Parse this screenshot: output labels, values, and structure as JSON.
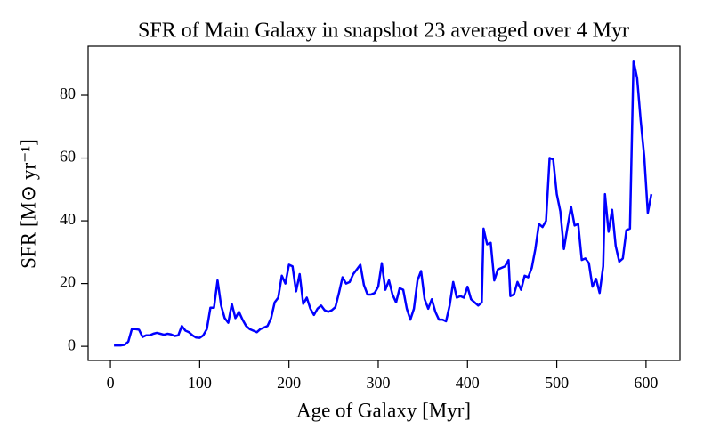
{
  "chart_data": {
    "type": "line",
    "title": "SFR of Main Galaxy in snapshot 23 averaged over 4 Myr",
    "xlabel": "Age of Galaxy [Myr]",
    "ylabel": "SFR [M⊙ yr⁻¹]",
    "color": "#0000ff",
    "xlim": [
      -25,
      638
    ],
    "ylim": [
      -4.5,
      95.6
    ],
    "xticks": [
      0,
      100,
      200,
      300,
      400,
      500,
      600
    ],
    "yticks": [
      0,
      20,
      40,
      60,
      80
    ],
    "x": [
      4,
      8,
      12,
      16,
      20,
      24,
      28,
      32,
      36,
      40,
      44,
      48,
      52,
      56,
      60,
      64,
      68,
      72,
      76,
      80,
      84,
      88,
      92,
      96,
      100,
      104,
      108,
      112,
      116,
      120,
      124,
      128,
      132,
      136,
      140,
      144,
      148,
      152,
      156,
      160,
      164,
      168,
      172,
      176,
      180,
      184,
      188,
      192,
      196,
      200,
      204,
      208,
      212,
      216,
      220,
      224,
      228,
      232,
      236,
      240,
      244,
      248,
      252,
      256,
      260,
      264,
      268,
      272,
      276,
      280,
      284,
      288,
      292,
      296,
      300,
      304,
      308,
      312,
      316,
      320,
      324,
      328,
      332,
      336,
      340,
      344,
      348,
      352,
      356,
      360,
      364,
      368,
      372,
      376,
      380,
      384,
      388,
      392,
      396,
      400,
      404,
      408,
      412,
      416,
      418,
      422,
      426,
      430,
      434,
      438,
      442,
      446,
      448,
      452,
      456,
      460,
      464,
      468,
      472,
      476,
      480,
      484,
      488,
      492,
      496,
      500,
      504,
      508,
      512,
      516,
      520,
      524,
      528,
      532,
      536,
      540,
      544,
      548,
      552,
      554,
      558,
      562,
      566,
      570,
      574,
      578,
      582,
      586,
      590,
      594,
      598,
      602,
      606
    ],
    "values": [
      0.3,
      0.3,
      0.3,
      0.5,
      1.5,
      5.5,
      5.5,
      5.3,
      3,
      3.5,
      3.5,
      4,
      4.3,
      4,
      3.7,
      4,
      3.8,
      3.3,
      3.5,
      6.5,
      5,
      4.5,
      3.5,
      2.8,
      2.7,
      3.5,
      5.5,
      12.3,
      12.3,
      21,
      13,
      9,
      7.5,
      13.5,
      9,
      11,
      8.5,
      6.5,
      5.5,
      5,
      4.5,
      5.5,
      6,
      6.5,
      9,
      14,
      15.5,
      22.5,
      20,
      26,
      25.5,
      17.5,
      23,
      13.5,
      15.5,
      12,
      10,
      12,
      13,
      11.5,
      11,
      11.5,
      12.5,
      17,
      22,
      20,
      20.5,
      23,
      24.5,
      26,
      19.5,
      16.5,
      16.5,
      17,
      19,
      26.5,
      18,
      21,
      16.5,
      14,
      18.5,
      18,
      12,
      8.5,
      12,
      21,
      24,
      15,
      12,
      15,
      11,
      8.5,
      8.5,
      8,
      13,
      20.5,
      15.5,
      16,
      15.5,
      19,
      15,
      14,
      13,
      14,
      37.5,
      32.5,
      33,
      21,
      24.5,
      25,
      25.5,
      27.5,
      16,
      16.5,
      20.5,
      18,
      22.5,
      22,
      25,
      31,
      39,
      38,
      40,
      60,
      59.5,
      48.5,
      43,
      31,
      38,
      44.5,
      38.5,
      39,
      27.5,
      28,
      26.5,
      19,
      21.5,
      17,
      25.5,
      48.5,
      36.5,
      43.5,
      32,
      27,
      28,
      37,
      37.5,
      91,
      85.5,
      72,
      60.5,
      42.5,
      48.5
    ]
  }
}
